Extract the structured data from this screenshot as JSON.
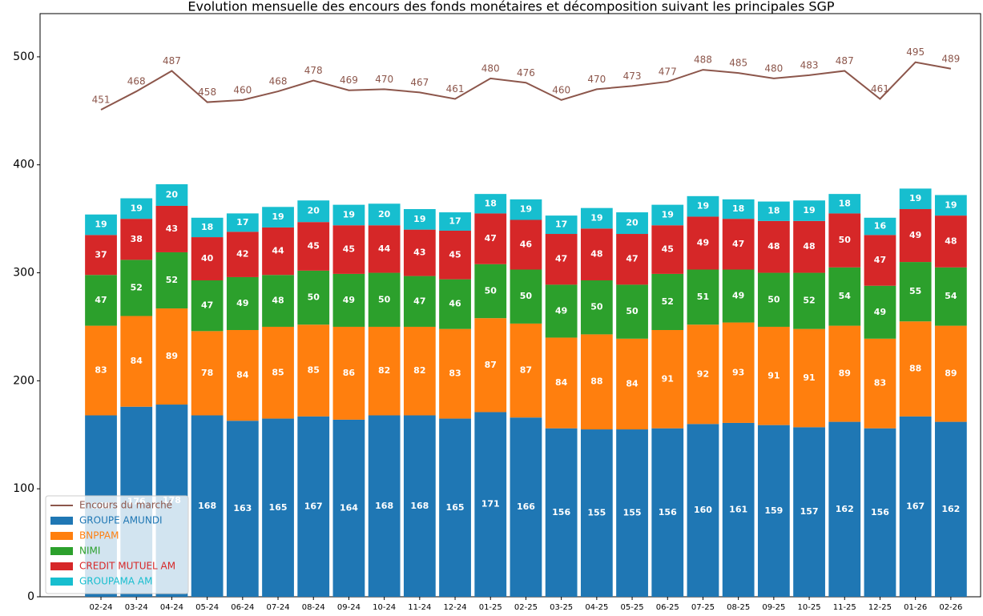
{
  "chart_data": {
    "type": "bar",
    "stacked": true,
    "title": "Evolution mensuelle des encours des fonds monétaires et décomposition suivant les principales SGP",
    "categories": [
      "02-24",
      "03-24",
      "04-24",
      "05-24",
      "06-24",
      "07-24",
      "08-24",
      "09-24",
      "10-24",
      "11-24",
      "12-24",
      "01-25",
      "02-25",
      "03-25",
      "04-25",
      "05-25",
      "06-25",
      "07-25",
      "08-25",
      "09-25",
      "10-25",
      "11-25",
      "12-25",
      "01-26",
      "02-26"
    ],
    "ylim": [
      0,
      540
    ],
    "yticks": [
      0,
      100,
      200,
      300,
      400,
      500
    ],
    "legend": "lower left",
    "series": [
      {
        "name": "Encours du marché",
        "type": "line",
        "color": "#8c564b",
        "values": [
          451,
          468,
          487,
          458,
          460,
          468,
          478,
          469,
          470,
          467,
          461,
          480,
          476,
          460,
          470,
          473,
          477,
          488,
          485,
          480,
          483,
          487,
          461,
          495,
          489
        ]
      },
      {
        "name": "GROUPE AMUNDI",
        "color": "#1f77b4",
        "values": [
          168,
          176,
          178,
          168,
          163,
          165,
          167,
          164,
          168,
          168,
          165,
          171,
          166,
          156,
          155,
          155,
          156,
          160,
          161,
          159,
          157,
          162,
          156,
          167,
          162
        ]
      },
      {
        "name": "BNPPAM",
        "color": "#ff7f0e",
        "values": [
          83,
          84,
          89,
          78,
          84,
          85,
          85,
          86,
          82,
          82,
          83,
          87,
          87,
          84,
          88,
          84,
          91,
          92,
          93,
          91,
          91,
          89,
          83,
          88,
          89
        ]
      },
      {
        "name": "NIMI",
        "color": "#2ca02c",
        "values": [
          47,
          52,
          52,
          47,
          49,
          48,
          50,
          49,
          50,
          47,
          46,
          50,
          50,
          49,
          50,
          50,
          52,
          51,
          49,
          50,
          52,
          54,
          49,
          55,
          54
        ]
      },
      {
        "name": "CREDIT MUTUEL AM",
        "color": "#d62728",
        "values": [
          37,
          38,
          43,
          40,
          42,
          44,
          45,
          45,
          44,
          43,
          45,
          47,
          46,
          47,
          48,
          47,
          45,
          49,
          47,
          48,
          48,
          50,
          47,
          49,
          48
        ]
      },
      {
        "name": "GROUPAMA AM",
        "color": "#17becf",
        "values": [
          19,
          19,
          20,
          18,
          17,
          19,
          20,
          19,
          20,
          19,
          17,
          18,
          19,
          17,
          19,
          20,
          19,
          19,
          18,
          18,
          19,
          18,
          16,
          19,
          19
        ]
      }
    ]
  }
}
